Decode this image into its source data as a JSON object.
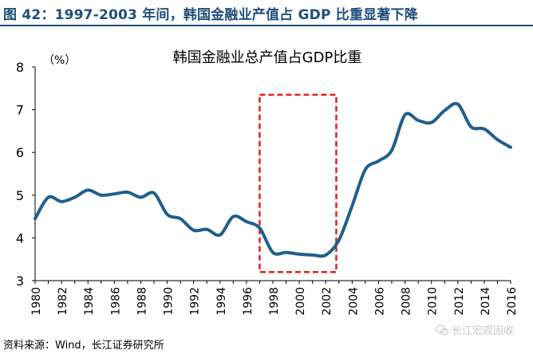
{
  "figure": {
    "title": "图 42：1997-2003 年间，韩国金融业产值占 GDP 比重显著下降",
    "source": "资料来源：Wind，长江证券研究所",
    "watermark": "长江宏观固收"
  },
  "colors": {
    "title": "#1f4e79",
    "line": "#1f5f8b",
    "highlight": "#e02020",
    "axis": "#000000"
  },
  "chart_data": {
    "type": "line",
    "title": "韩国金融业总产值占GDP比重",
    "ylabel": "（%）",
    "xlabel": "",
    "xlim": [
      1980,
      2016
    ],
    "ylim": [
      3,
      8
    ],
    "yticks": [
      3,
      4,
      5,
      6,
      7,
      8
    ],
    "xticks": [
      1980,
      1982,
      1984,
      1986,
      1988,
      1990,
      1992,
      1994,
      1996,
      1998,
      2000,
      2002,
      2004,
      2006,
      2008,
      2010,
      2012,
      2014,
      2016
    ],
    "grid": false,
    "series": [
      {
        "name": "韩国金融业总产值占GDP比重",
        "x": [
          1980,
          1981,
          1982,
          1983,
          1984,
          1985,
          1986,
          1987,
          1988,
          1989,
          1990,
          1991,
          1992,
          1993,
          1994,
          1995,
          1996,
          1997,
          1998,
          1999,
          2000,
          2001,
          2002,
          2003,
          2004,
          2005,
          2006,
          2007,
          2008,
          2009,
          2010,
          2011,
          2012,
          2013,
          2014,
          2015,
          2016
        ],
        "values": [
          4.45,
          4.95,
          4.85,
          4.95,
          5.12,
          5.0,
          5.03,
          5.07,
          4.95,
          5.05,
          4.55,
          4.45,
          4.18,
          4.2,
          4.07,
          4.5,
          4.38,
          4.23,
          3.66,
          3.66,
          3.62,
          3.6,
          3.6,
          3.95,
          4.75,
          5.6,
          5.8,
          6.05,
          6.88,
          6.75,
          6.7,
          6.98,
          7.13,
          6.6,
          6.55,
          6.3,
          6.12
        ]
      }
    ],
    "highlight": {
      "label": "1997-2003",
      "x_from": 1997,
      "x_to": 2002.8,
      "y_from": 3.2,
      "y_to": 7.35
    }
  }
}
